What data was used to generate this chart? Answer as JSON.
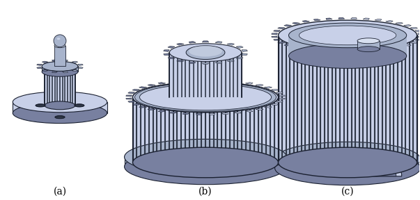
{
  "background_color": "#ffffff",
  "label_a": "(a)",
  "label_b": "(b)",
  "label_c": "(c)",
  "label_fontsize": 10,
  "fig_width": 6.03,
  "fig_height": 2.88,
  "dpi": 100,
  "colors": {
    "face_light": "#c8d0e8",
    "face_mid": "#a8b4cc",
    "face_dark": "#7880a0",
    "tooth_side": "#606880",
    "very_dark": "#303848",
    "outline": "#1a2030",
    "highlight": "#d8e0f0",
    "shadow_line": "#404858",
    "mid_dark": "#8890a8"
  }
}
